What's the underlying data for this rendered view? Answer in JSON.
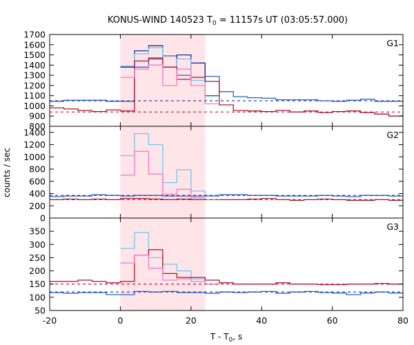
{
  "chart_data": {
    "type": "line",
    "title": "KONUS-WIND 140523 T",
    "title_sub": "0",
    "title_rest": " = 11157s UT (03:05:57.000)",
    "xlabel": "T - T",
    "xlabel_sub": "0",
    "xlabel_rest": ", s",
    "ylabel": "counts / sec",
    "xlim": [
      -20,
      80
    ],
    "x_ticks": [
      -20,
      0,
      20,
      40,
      60,
      80
    ],
    "shaded_interval": [
      0,
      24
    ],
    "colors": {
      "dark_blue": "#1f2a9c",
      "blue": "#2060d0",
      "dark_red": "#b0102a",
      "red": "#c8102e",
      "pink": "#f07ac8",
      "light_blue": "#6cc8f0",
      "shade": "#ffe4e8"
    },
    "panels": [
      {
        "label": "G1",
        "ylim": [
          800,
          1700
        ],
        "y_ticks": [
          800,
          900,
          1000,
          1100,
          1200,
          1300,
          1400,
          1500,
          1600,
          1700
        ],
        "background_levels": [
          {
            "value": 1050,
            "color": "dark_blue"
          },
          {
            "value": 940,
            "color": "red"
          }
        ],
        "series": [
          {
            "color": "blue",
            "step": 4,
            "x0": -20,
            "y": [
              1045,
              1055,
              1055,
              1055,
              1045,
              1045,
              1380,
              1460,
              1490,
              1300,
              1420,
              1290,
              1140,
              1090,
              1080,
              1075,
              1060,
              1060,
              1060,
              1050,
              1045,
              1055,
              1065,
              1045,
              1045,
              1080,
              1050,
              1060,
              1080,
              1045,
              1050,
              1065,
              1070,
              1060,
              1045,
              1045,
              1045,
              1050,
              1060,
              1050,
              1040,
              1045,
              1045,
              1065,
              1045,
              1045,
              1045,
              1040,
              1045,
              1050,
              1040
            ]
          },
          {
            "color": "dark_blue",
            "step": 4,
            "x0": 0,
            "y": [
              1380,
              1540,
              1590,
              1380,
              1500,
              1420,
              1100
            ]
          },
          {
            "color": "light_blue",
            "step": 4,
            "x0": 0,
            "y": [
              1390,
              1510,
              1570,
              1380,
              1460,
              1250,
              1095
            ]
          },
          {
            "color": "dark_red",
            "step": 4,
            "x0": -20,
            "y": [
              980,
              970,
              955,
              945,
              960,
              950,
              1440,
              1470,
              1380,
              1260,
              1280,
              1240,
              1010,
              955,
              950,
              945,
              955,
              940,
              950,
              935,
              945,
              950,
              935,
              920,
              900,
              930,
              940,
              935,
              925,
              920,
              930,
              935,
              950,
              940,
              930,
              920,
              925,
              930,
              940,
              935,
              920,
              915,
              935,
              950,
              965,
              930,
              925,
              930,
              920,
              940,
              935
            ]
          },
          {
            "color": "pink",
            "step": 4,
            "x0": 0,
            "y": [
              1280,
              1360,
              1400,
              1200,
              1360,
              1200,
              1020
            ]
          }
        ]
      },
      {
        "label": "G2",
        "ylim": [
          0,
          1500
        ],
        "y_ticks": [
          0,
          200,
          400,
          600,
          800,
          1000,
          1200,
          1400
        ],
        "background_levels": [
          {
            "value": 370,
            "color": "dark_blue"
          },
          {
            "value": 300,
            "color": "red"
          }
        ],
        "series": [
          {
            "color": "blue",
            "step": 4,
            "x0": -20,
            "y": [
              350,
              360,
              360,
              380,
              370,
              360,
              370,
              370,
              360,
              360,
              360,
              360,
              380,
              380,
              370,
              370,
              360,
              360,
              360,
              370,
              360,
              350,
              370,
              370,
              360,
              360,
              360,
              370,
              370,
              360,
              350,
              360,
              370,
              370,
              360,
              360,
              360,
              370,
              360,
              360,
              360,
              360,
              370,
              370,
              360,
              360,
              360,
              370,
              360,
              360
            ]
          },
          {
            "color": "light_blue",
            "step": 4,
            "x0": 0,
            "y": [
              1020,
              1380,
              1200,
              580,
              790,
              440,
              370
            ]
          },
          {
            "color": "dark_red",
            "step": 4,
            "x0": -20,
            "y": [
              300,
              310,
              300,
              310,
              300,
              320,
              320,
              310,
              300,
              310,
              300,
              300,
              300,
              300,
              310,
              320,
              300,
              290,
              300,
              310,
              300,
              290,
              290,
              300,
              290,
              280,
              280,
              290,
              300,
              300,
              290,
              300,
              290,
              300,
              290,
              280,
              290,
              300,
              290,
              280,
              290,
              300,
              290,
              280,
              280,
              290,
              300,
              290,
              280,
              290
            ]
          },
          {
            "color": "pink",
            "step": 4,
            "x0": 0,
            "y": [
              700,
              1090,
              720,
              390,
              470,
              330,
              300
            ]
          }
        ]
      },
      {
        "label": "G3",
        "ylim": [
          50,
          400
        ],
        "y_ticks": [
          50,
          100,
          150,
          200,
          250,
          300,
          350
        ],
        "background_levels": [
          {
            "value": 150,
            "color": "red"
          },
          {
            "value": 120,
            "color": "dark_blue"
          }
        ],
        "series": [
          {
            "color": "blue",
            "step": 4,
            "x0": -20,
            "y": [
              118,
              115,
              118,
              118,
              110,
              110,
              122,
              120,
              122,
              118,
              118,
              115,
              120,
              118,
              120,
              122,
              115,
              120,
              122,
              118,
              116,
              110,
              116,
              120,
              116,
              120,
              124,
              120,
              118,
              116,
              120,
              112,
              120,
              115,
              118,
              116,
              115,
              120,
              120,
              122,
              118,
              120,
              116,
              118,
              125,
              112,
              120,
              120,
              122,
              118,
              110
            ]
          },
          {
            "color": "light_blue",
            "step": 4,
            "x0": 0,
            "y": [
              285,
              345,
              250,
              225,
              200,
              170,
              150
            ]
          },
          {
            "color": "dark_red",
            "step": 4,
            "x0": -20,
            "y": [
              160,
              160,
              165,
              160,
              155,
              160,
              260,
              280,
              190,
              175,
              175,
              165,
              155,
              150,
              150,
              150,
              155,
              150,
              150,
              148,
              148,
              150,
              150,
              152,
              150,
              148,
              148,
              150,
              152,
              150,
              145,
              150,
              150,
              150,
              152,
              150,
              150,
              148,
              150,
              152,
              150,
              148,
              150,
              155,
              155,
              155,
              150,
              150,
              152,
              150,
              150
            ]
          },
          {
            "color": "pink",
            "step": 4,
            "x0": 0,
            "y": [
              230,
              260,
              210,
              165,
              170,
              160,
              150
            ]
          }
        ]
      }
    ]
  }
}
